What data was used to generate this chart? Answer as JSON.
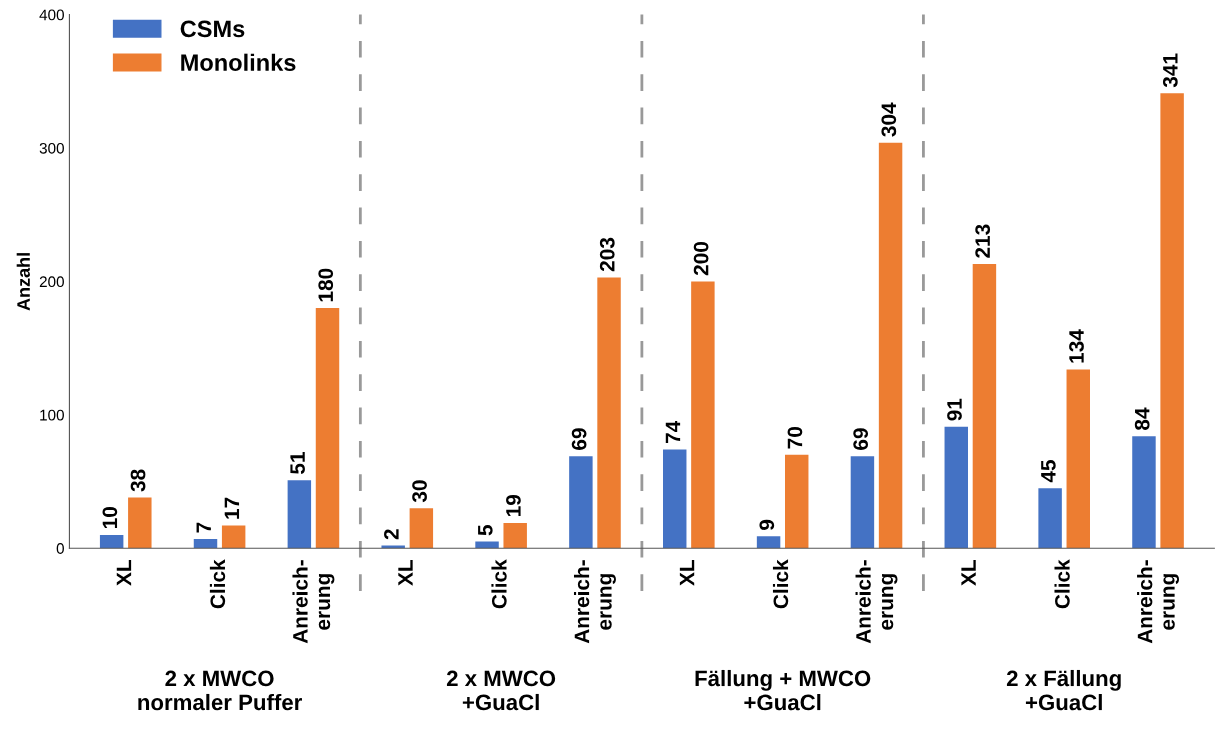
{
  "chart_data": {
    "type": "bar",
    "ylabel": "Anzahl",
    "categories": [
      "XL",
      "Click",
      "Anreich-\nerung",
      "XL",
      "Click",
      "Anreich-\nerung",
      "XL",
      "Click",
      "Anreich-\nerung",
      "XL",
      "Click",
      "Anreich-\nerung"
    ],
    "series": [
      {
        "name": "CSMs",
        "color": "#4472c4",
        "values": [
          10,
          7,
          51,
          2,
          5,
          69,
          74,
          9,
          69,
          91,
          45,
          84
        ]
      },
      {
        "name": "Monolinks",
        "color": "#ed7d31",
        "values": [
          38,
          17,
          180,
          30,
          19,
          203,
          200,
          70,
          304,
          213,
          134,
          341
        ]
      }
    ],
    "ylim": [
      0,
      400
    ],
    "yticks": [
      0,
      100,
      200,
      300,
      400
    ],
    "annotations": [
      "2 x MWCO\nnormaler Puffer",
      "2 x MWCO\n+GuaCl",
      "Fällung + MWCO\n+GuaCl",
      "2 x Fällung\n+GuaCl"
    ],
    "data_labels": true,
    "grid": false,
    "legend": "top left"
  }
}
